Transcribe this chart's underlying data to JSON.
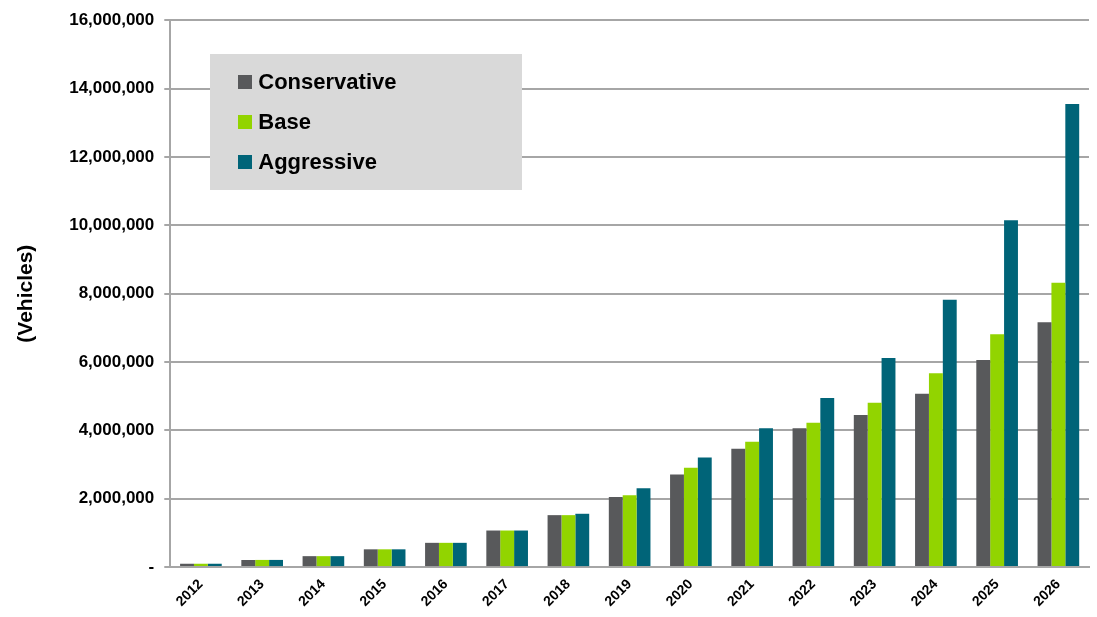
{
  "chart_data": {
    "type": "bar",
    "ylabel": "(Vehicles)",
    "categories": [
      "2012",
      "2013",
      "2014",
      "2015",
      "2016",
      "2017",
      "2018",
      "2019",
      "2020",
      "2021",
      "2022",
      "2023",
      "2024",
      "2025",
      "2026"
    ],
    "series": [
      {
        "name": "Conservative",
        "color": "#58595b",
        "values": [
          100000,
          210000,
          320000,
          520000,
          710000,
          1070000,
          1520000,
          2050000,
          2710000,
          3460000,
          4060000,
          4450000,
          5070000,
          6060000,
          7160000
        ]
      },
      {
        "name": "Base",
        "color": "#92d400",
        "values": [
          100000,
          210000,
          320000,
          520000,
          710000,
          1070000,
          1520000,
          2100000,
          2910000,
          3670000,
          4220000,
          4810000,
          5670000,
          6810000,
          8320000
        ]
      },
      {
        "name": "Aggressive",
        "color": "#006478",
        "values": [
          100000,
          210000,
          320000,
          520000,
          710000,
          1070000,
          1560000,
          2310000,
          3210000,
          4060000,
          4950000,
          6120000,
          7820000,
          10150000,
          13550000
        ]
      }
    ],
    "ylim": [
      0,
      16000000
    ],
    "yticks": [
      {
        "value": 0,
        "label": "-"
      },
      {
        "value": 2000000,
        "label": "2,000,000"
      },
      {
        "value": 4000000,
        "label": "4,000,000"
      },
      {
        "value": 6000000,
        "label": "6,000,000"
      },
      {
        "value": 8000000,
        "label": "8,000,000"
      },
      {
        "value": 10000000,
        "label": "10,000,000"
      },
      {
        "value": 12000000,
        "label": "12,000,000"
      },
      {
        "value": 14000000,
        "label": "14,000,000"
      },
      {
        "value": 16000000,
        "label": "16,000,000"
      }
    ],
    "grid": "y",
    "legend": "top left"
  }
}
